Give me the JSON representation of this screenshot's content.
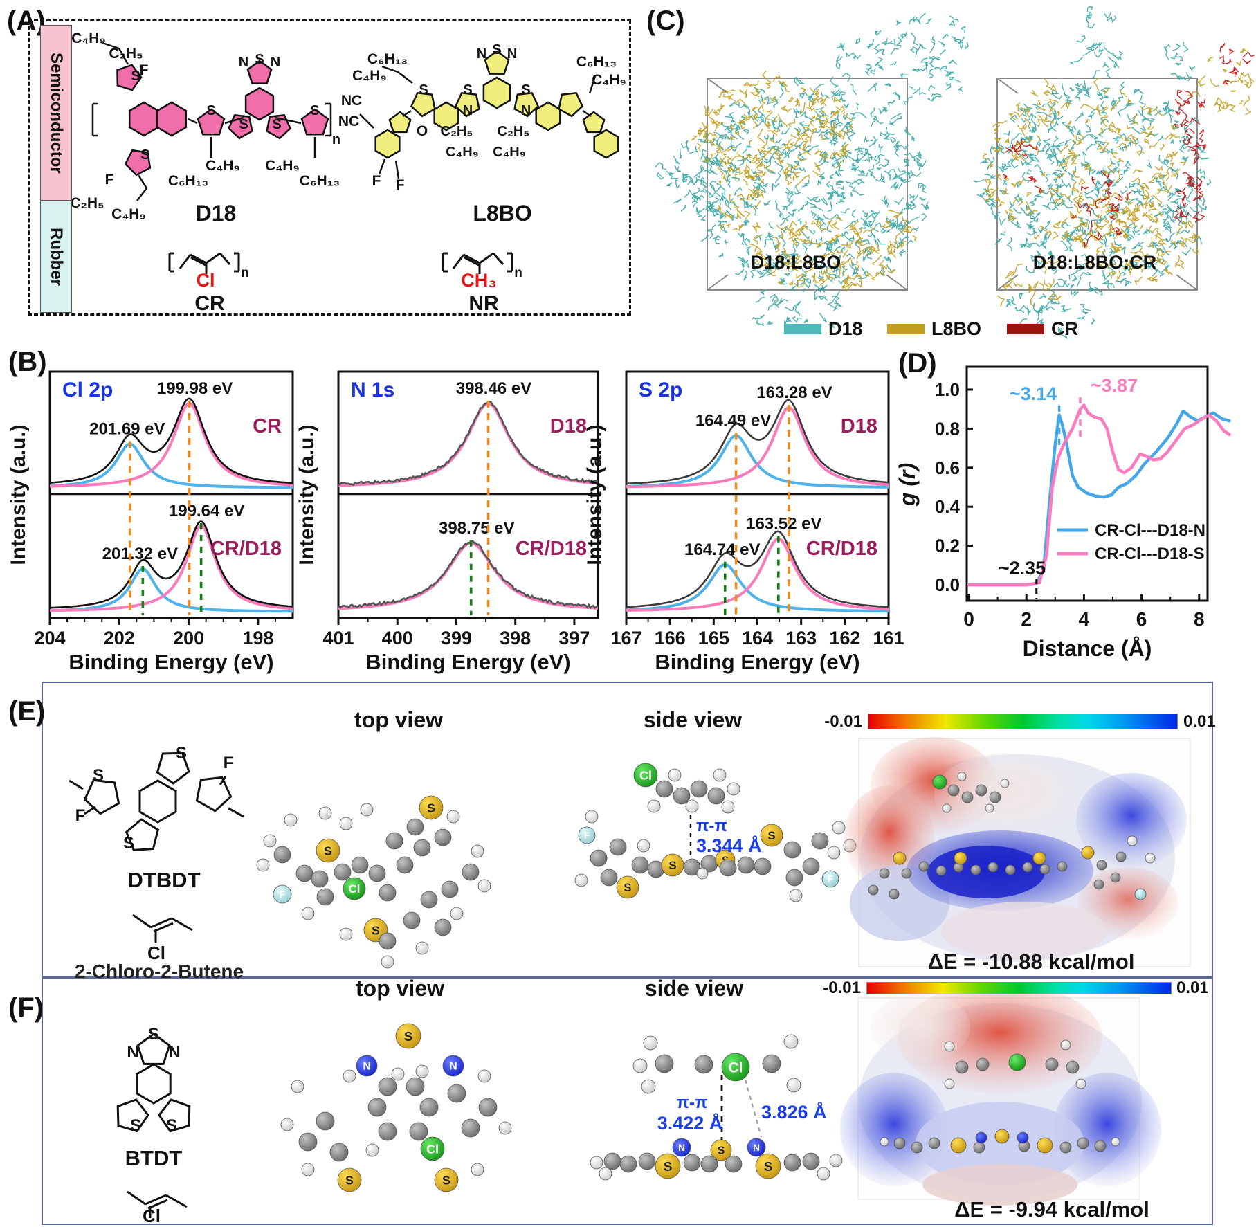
{
  "panel_a": {
    "label": "(A)",
    "sidebar": {
      "semiconductor": "Semiconductor",
      "rubber": "Rubber"
    },
    "d18": {
      "name": "D18",
      "labels": {
        "top_chain": [
          "C₄H₉",
          "C₂H₅",
          "F"
        ],
        "btz": [
          "N",
          "S",
          "N"
        ],
        "ring_s": [
          "S",
          "S",
          "S",
          "S",
          "S",
          "S"
        ],
        "bottom_left": [
          "F",
          "C₂H₅",
          "C₄H₉"
        ],
        "bottom_mid": [
          "C₆H₁₃",
          "C₄H₉"
        ],
        "bottom_right": [
          "C₄H₉",
          "C₆H₁₃"
        ],
        "repeat": "n"
      }
    },
    "l8bo": {
      "name": "L8BO",
      "labels": {
        "top_left": [
          "C₆H₁₃",
          "C₄H₉"
        ],
        "nc": [
          "NC",
          "NC"
        ],
        "btz": [
          "N",
          "S",
          "N"
        ],
        "ring_s": [
          "S",
          "S",
          "S"
        ],
        "n_atoms": [
          "N",
          "N"
        ],
        "o": "O",
        "chains": [
          "C₂H₅",
          "C₂H₅",
          "C₄H₉",
          "C₄H₉"
        ],
        "f": [
          "F",
          "F"
        ],
        "top_right": [
          "C₆H₁₃",
          "C₄H₉"
        ]
      }
    },
    "cr": {
      "name": "CR",
      "group": "Cl",
      "repeat": "n"
    },
    "nr": {
      "name": "NR",
      "group": "CH₃",
      "repeat": "n"
    }
  },
  "panel_c": {
    "label": "(C)",
    "boxes": [
      {
        "label": "D18:L8BO"
      },
      {
        "label": "D18:L8BO:CR"
      }
    ],
    "legend": [
      {
        "label": "D18",
        "color": "#4db9b9"
      },
      {
        "label": "L8BO",
        "color": "#c2a01e"
      },
      {
        "label": "CR",
        "color": "#9e1212"
      }
    ]
  },
  "panel_b": {
    "label": "(B)"
  },
  "panel_d": {
    "label": "(D)"
  },
  "panel_e": {
    "label": "(E)",
    "molecule1": "DTBDT",
    "molecule2": "2-Chloro-2-Butene",
    "cl_label": "Cl",
    "top_view": "top view",
    "side_view": "side view",
    "pi_pi": "π-π",
    "distance": "3.344 Å",
    "colorbar": {
      "min": "-0.01",
      "max": "0.01"
    },
    "delta_e": "ΔE = -10.88 kcal/mol"
  },
  "panel_f": {
    "label": "(F)",
    "molecule1": "BTDT",
    "cl_label": "Cl",
    "top_view": "top view",
    "side_view": "side view",
    "pi_pi": "π-π",
    "distance1": "3.422 Å",
    "distance2": "3.826 Å",
    "colorbar": {
      "min": "-0.01",
      "max": "0.01"
    },
    "delta_e": "ΔE = -9.94 kcal/mol"
  },
  "atom_symbols": {
    "sulfur": "S",
    "nitrogen": "N",
    "chlorine": "Cl",
    "fluorine": "F"
  },
  "chart_data": [
    {
      "id": "cl2p",
      "type": "line",
      "title": "Cl 2p",
      "xlabel": "Binding Energy (eV)",
      "ylabel": "Intensity (a.u.)",
      "x_ticks": [
        204,
        202,
        200,
        198
      ],
      "x_range": [
        204,
        197
      ],
      "x_reversed": true,
      "subpanels": [
        {
          "sample": "CR",
          "components": [
            {
              "label": "201.69 eV",
              "center": 201.69,
              "height": 0.52,
              "hwhm": 0.5,
              "color": "#4fb3ea"
            },
            {
              "label": "199.98 eV",
              "center": 199.98,
              "height": 1.0,
              "hwhm": 0.56,
              "color": "#f97bbb"
            }
          ],
          "envelope_color": "#111111"
        },
        {
          "sample": "CR/D18",
          "components": [
            {
              "label": "201.32 eV",
              "center": 201.32,
              "height": 0.5,
              "hwhm": 0.46,
              "color": "#4fb3ea"
            },
            {
              "label": "199.64 eV",
              "center": 199.64,
              "height": 1.0,
              "hwhm": 0.52,
              "color": "#f97bbb"
            }
          ],
          "envelope_color": "#111111"
        }
      ],
      "guide_colors": {
        "top": "#f08c1e",
        "bottom": "#0f7d0f"
      }
    },
    {
      "id": "n1s",
      "type": "line",
      "title": "N 1s",
      "xlabel": "Binding Energy (eV)",
      "ylabel": "Intensity (a.u.)",
      "x_ticks": [
        401,
        400,
        399,
        398,
        397
      ],
      "x_range": [
        401,
        396.6
      ],
      "x_reversed": true,
      "subpanels": [
        {
          "sample": "D18",
          "noisy": true,
          "components": [
            {
              "label": "398.46 eV",
              "center": 398.46,
              "height": 1.0,
              "hwhm": 0.44,
              "color": "#f97bbb"
            }
          ],
          "envelope_color": "#555555"
        },
        {
          "sample": "CR/D18",
          "noisy": true,
          "components": [
            {
              "label": "398.75 eV",
              "center": 398.75,
              "height": 0.8,
              "hwhm": 0.5,
              "color": "#f97bbb"
            }
          ],
          "envelope_color": "#555555"
        }
      ],
      "guide_colors": {
        "top": "#f08c1e",
        "bottom": "#0f7d0f"
      }
    },
    {
      "id": "s2p",
      "type": "line",
      "title": "S 2p",
      "xlabel": "Binding Energy (eV)",
      "ylabel": "Intensity (a.u.)",
      "x_ticks": [
        167,
        166,
        165,
        164,
        163,
        162,
        161
      ],
      "x_range": [
        167,
        161
      ],
      "x_reversed": true,
      "subpanels": [
        {
          "sample": "D18",
          "components": [
            {
              "label": "164.49 eV",
              "center": 164.49,
              "height": 0.62,
              "hwhm": 0.44,
              "color": "#4fb3ea"
            },
            {
              "label": "163.28 eV",
              "center": 163.28,
              "height": 0.95,
              "hwhm": 0.46,
              "color": "#f97bbb"
            }
          ],
          "envelope_color": "#3a3a3a"
        },
        {
          "sample": "CR/D18",
          "components": [
            {
              "label": "164.74 eV",
              "center": 164.74,
              "height": 0.55,
              "hwhm": 0.46,
              "color": "#4fb3ea"
            },
            {
              "label": "163.52 eV",
              "center": 163.52,
              "height": 0.85,
              "hwhm": 0.48,
              "color": "#f97bbb"
            }
          ],
          "envelope_color": "#3a3a3a"
        }
      ],
      "guide_colors": {
        "top": "#f08c1e",
        "bottom": "#0f7d0f"
      }
    },
    {
      "id": "gr",
      "type": "line",
      "title": "",
      "xlabel": "Distance (Å)",
      "ylabel": "g (r)",
      "x_ticks": [
        0,
        2,
        4,
        6,
        8
      ],
      "y_ticks": [
        0.0,
        0.2,
        0.4,
        0.6,
        0.8,
        1.0
      ],
      "x_range": [
        0,
        9.1
      ],
      "y_range": [
        -0.08,
        1.05
      ],
      "legend_position": "lower right",
      "series": [
        {
          "name": "CR-Cl---D18-N",
          "color": "#45a7e8",
          "points": [
            [
              0,
              0
            ],
            [
              1.0,
              0
            ],
            [
              2.0,
              0
            ],
            [
              2.35,
              0.005
            ],
            [
              2.6,
              0.08
            ],
            [
              2.8,
              0.42
            ],
            [
              3.0,
              0.72
            ],
            [
              3.14,
              0.87
            ],
            [
              3.25,
              0.82
            ],
            [
              3.4,
              0.72
            ],
            [
              3.6,
              0.56
            ],
            [
              3.8,
              0.5
            ],
            [
              4.1,
              0.47
            ],
            [
              4.4,
              0.455
            ],
            [
              4.7,
              0.45
            ],
            [
              4.95,
              0.46
            ],
            [
              5.2,
              0.5
            ],
            [
              5.5,
              0.52
            ],
            [
              5.8,
              0.56
            ],
            [
              6.1,
              0.62
            ],
            [
              6.5,
              0.68
            ],
            [
              6.9,
              0.75
            ],
            [
              7.2,
              0.82
            ],
            [
              7.45,
              0.89
            ],
            [
              7.7,
              0.86
            ],
            [
              7.95,
              0.84
            ],
            [
              8.2,
              0.86
            ],
            [
              8.5,
              0.88
            ],
            [
              8.8,
              0.85
            ],
            [
              9.05,
              0.84
            ]
          ]
        },
        {
          "name": "CR-Cl---D18-S",
          "color": "#fa7cbe",
          "points": [
            [
              0,
              0
            ],
            [
              1.0,
              0
            ],
            [
              2.0,
              0
            ],
            [
              2.45,
              0.01
            ],
            [
              2.7,
              0.15
            ],
            [
              2.9,
              0.5
            ],
            [
              3.1,
              0.65
            ],
            [
              3.3,
              0.72
            ],
            [
              3.6,
              0.8
            ],
            [
              3.87,
              0.9
            ],
            [
              4.0,
              0.92
            ],
            [
              4.15,
              0.88
            ],
            [
              4.35,
              0.86
            ],
            [
              4.6,
              0.85
            ],
            [
              4.8,
              0.8
            ],
            [
              5.0,
              0.68
            ],
            [
              5.2,
              0.59
            ],
            [
              5.4,
              0.575
            ],
            [
              5.65,
              0.6
            ],
            [
              5.95,
              0.67
            ],
            [
              6.15,
              0.66
            ],
            [
              6.4,
              0.64
            ],
            [
              6.65,
              0.645
            ],
            [
              6.9,
              0.68
            ],
            [
              7.2,
              0.74
            ],
            [
              7.5,
              0.8
            ],
            [
              7.8,
              0.82
            ],
            [
              8.1,
              0.85
            ],
            [
              8.35,
              0.87
            ],
            [
              8.6,
              0.84
            ],
            [
              8.85,
              0.79
            ],
            [
              9.05,
              0.77
            ]
          ]
        }
      ],
      "annotations": [
        {
          "text": "~3.14",
          "x": 3.14,
          "color": "#45a7e8"
        },
        {
          "text": "~3.87",
          "x": 3.87,
          "color": "#fa7cbe"
        },
        {
          "text": "~2.35",
          "x": 2.35,
          "color": "#111111"
        }
      ]
    }
  ]
}
